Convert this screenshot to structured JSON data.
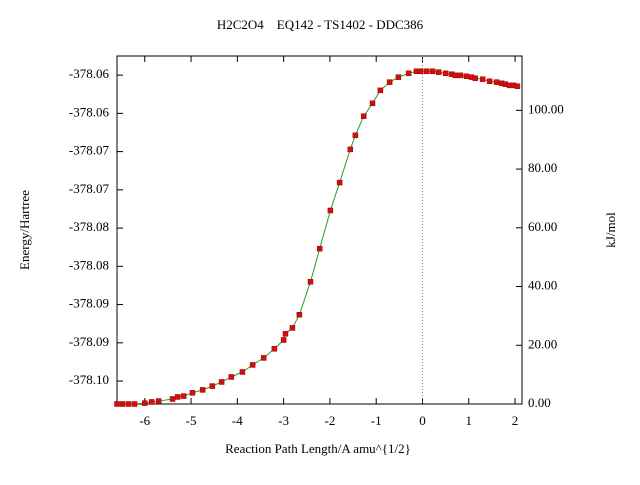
{
  "chart_data": {
    "type": "line",
    "title": "H2C2O4    EQ142 - TS1402 - DDC386",
    "x_label": "Reaction Path Length/A amu^{1/2}",
    "y_label": "Energy/Hartree",
    "y2_label": "kJ/mol",
    "xlim": [
      -6.6,
      2.15
    ],
    "xticks": [
      -6,
      -5,
      -4,
      -3,
      -2,
      -1,
      0,
      1,
      2
    ],
    "ylim": [
      -378.103,
      -378.0575
    ],
    "yticks": [
      {
        "value": -378.1,
        "label": "-378.10"
      },
      {
        "value": -378.095,
        "label": "-378.09"
      },
      -378.09,
      {
        "value": -378.085,
        "label": "-378.08"
      },
      -378.08,
      {
        "value": -378.075,
        "label": "-378.07"
      },
      -378.07,
      {
        "value": -378.065,
        "label": "-378.06"
      },
      -378.06
    ],
    "y2lim": [
      0,
      118.5
    ],
    "y2ticks": [
      {
        "value": 0,
        "label": "0.00"
      },
      {
        "value": 20,
        "label": "20.00"
      },
      {
        "value": 40,
        "label": "40.00"
      },
      {
        "value": 60,
        "label": "60.00"
      },
      {
        "value": 80,
        "label": "80.00"
      },
      {
        "value": 100,
        "label": "100.00"
      }
    ],
    "vline_x": 0,
    "x": [
      -6.6,
      -6.48,
      -6.35,
      -6.22,
      -6.0,
      -5.85,
      -5.7,
      -5.4,
      -5.29,
      -5.16,
      -4.97,
      -4.75,
      -4.54,
      -4.34,
      -4.13,
      -3.89,
      -3.67,
      -3.43,
      -3.2,
      -3.0,
      -2.96,
      -2.81,
      -2.66,
      -2.42,
      -2.22,
      -1.99,
      -1.79,
      -1.56,
      -1.45,
      -1.27,
      -1.08,
      -0.91,
      -0.71,
      -0.52,
      -0.3,
      -0.13,
      -0.04,
      0.09,
      0.22,
      0.35,
      0.5,
      0.63,
      0.71,
      0.82,
      0.95,
      1.06,
      1.14,
      1.3,
      1.45,
      1.6,
      1.71,
      1.79,
      1.88,
      1.97,
      2.05
    ],
    "series": [
      {
        "axis": "y2",
        "color": "#d01010",
        "line_color": "#20a020",
        "values": [
          0,
          0,
          0,
          0,
          0.3,
          0.7,
          1.0,
          1.7,
          2.4,
          2.7,
          3.8,
          4.8,
          6.1,
          7.5,
          9.2,
          10.9,
          13.3,
          15.7,
          18.8,
          21.8,
          23.9,
          25.9,
          30.4,
          41.6,
          52.9,
          65.9,
          75.4,
          86.7,
          91.5,
          98.0,
          102.4,
          106.8,
          109.6,
          111.3,
          112.6,
          113.3,
          113.3,
          113.3,
          113.3,
          113.0,
          112.6,
          112.3,
          111.9,
          111.9,
          111.6,
          111.3,
          110.9,
          110.6,
          109.9,
          109.6,
          109.2,
          108.9,
          108.5,
          108.5,
          108.2
        ]
      }
    ]
  }
}
